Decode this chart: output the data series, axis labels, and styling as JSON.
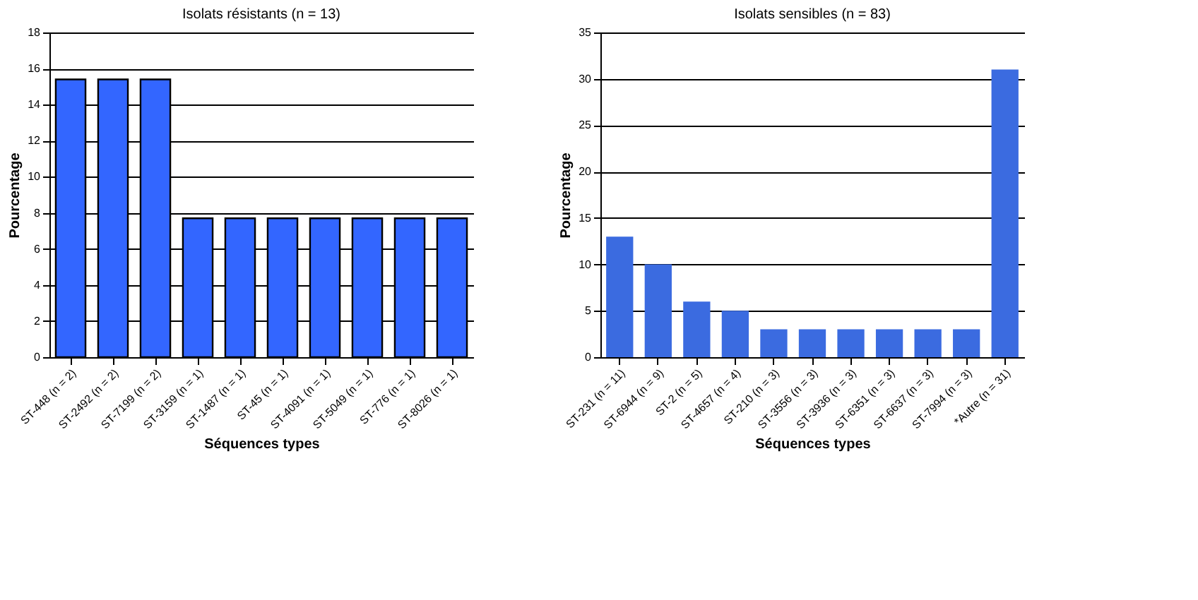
{
  "chart_data": [
    {
      "type": "bar",
      "title": "Isolats résistants (n = 13)",
      "xlabel": "Séquences types",
      "ylabel": "Pourcentage",
      "categories": [
        "ST-448 (n = 2)",
        "ST-2492 (n = 2)",
        "ST-7199 (n = 2)",
        "ST-3159 (n = 1)",
        "ST-1487 (n = 1)",
        "ST-45 (n = 1)",
        "ST-4091 (n = 1)",
        "ST-5049 (n = 1)",
        "ST-776 (n = 1)",
        "ST-8026 (n = 1)"
      ],
      "values": [
        15.4,
        15.4,
        15.4,
        7.7,
        7.7,
        7.7,
        7.7,
        7.7,
        7.7,
        7.7
      ],
      "color": "#3366ff",
      "ylim": [
        0,
        18
      ],
      "yticks": [
        0,
        2,
        4,
        6,
        8,
        10,
        12,
        14,
        16,
        18
      ],
      "grid": "y"
    },
    {
      "type": "bar",
      "title": "Isolats sensibles (n = 83)",
      "xlabel": "Séquences types",
      "ylabel": "Pourcentage",
      "categories": [
        "ST-231 (n = 11)",
        "ST-6944 (n = 9)",
        "ST-2 (n = 5)",
        "ST-4657 (n = 4)",
        "ST-210 (n = 3)",
        "ST-3556 (n = 3)",
        "ST-3936 (n = 3)",
        "ST-6351 (n = 3)",
        "ST-6637 (n = 3)",
        "ST-7994 (n = 3)",
        "*Autre (n = 31)"
      ],
      "values": [
        13,
        10,
        6,
        5,
        3,
        3,
        3,
        3,
        3,
        3,
        31
      ],
      "color": "#3b6be0",
      "ylim": [
        0,
        35
      ],
      "yticks": [
        0,
        5,
        10,
        15,
        20,
        25,
        30,
        35
      ],
      "grid": "y"
    }
  ]
}
